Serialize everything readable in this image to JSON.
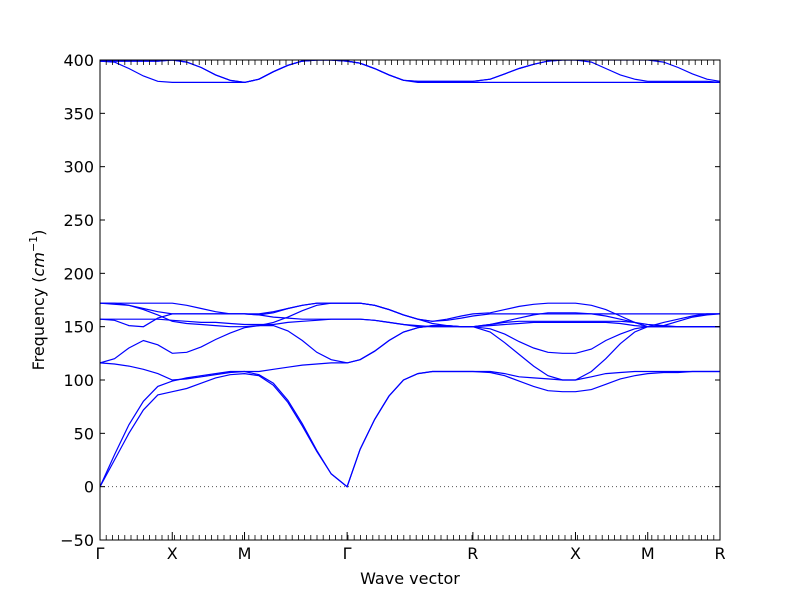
{
  "chart_data": {
    "type": "line",
    "title": "",
    "xlabel": "Wave vector",
    "ylabel": "Frequency",
    "ylabel_unit": "cm",
    "ylabel_unit_exp": "−1",
    "ylim": [
      -50,
      400
    ],
    "yticks": [
      -50,
      0,
      50,
      100,
      150,
      200,
      250,
      300,
      350,
      400
    ],
    "grid": false,
    "legend": "none",
    "zero_line": {
      "value": 0,
      "style": "dotted"
    },
    "line_color": "#0000ff",
    "x_labels": [
      {
        "label": "Γ",
        "x": 0.0
      },
      {
        "label": "X",
        "x": 0.5
      },
      {
        "label": "M",
        "x": 1.0
      },
      {
        "label": "Γ",
        "x": 1.71
      },
      {
        "label": "R",
        "x": 2.58
      },
      {
        "label": "X",
        "x": 3.29
      },
      {
        "label": "M",
        "x": 3.79
      },
      {
        "label": "R",
        "x": 4.29
      }
    ],
    "xlim": [
      0.0,
      4.29
    ],
    "series": [
      {
        "x": [
          0.0,
          0.1,
          0.2,
          0.3,
          0.4,
          0.5,
          0.6,
          0.7,
          0.8,
          0.9,
          1.0,
          1.1,
          1.2,
          1.3,
          1.4,
          1.5,
          1.6,
          1.71,
          1.8,
          1.9,
          2.0,
          2.1,
          2.2,
          2.3,
          2.4,
          2.5,
          2.58,
          2.7,
          2.8,
          2.9,
          3.0,
          3.1,
          3.2,
          3.29,
          3.4,
          3.5,
          3.6,
          3.7,
          3.79,
          3.9,
          4.0,
          4.1,
          4.2,
          4.29
        ],
        "y": [
          0,
          25,
          50,
          72,
          86,
          89,
          92,
          97,
          102,
          105,
          106,
          104,
          95,
          79,
          57,
          33,
          12,
          0,
          35,
          63,
          85,
          100,
          106,
          108,
          108,
          108,
          108,
          107,
          104,
          99,
          94,
          90,
          89,
          89,
          91,
          96,
          101,
          104,
          106,
          107,
          107,
          108,
          108,
          108
        ]
      },
      {
        "x": [
          0.0,
          0.1,
          0.2,
          0.3,
          0.4,
          0.5,
          0.6,
          0.7,
          0.8,
          0.9,
          1.0,
          1.1,
          1.2,
          1.3,
          1.4,
          1.5,
          1.6,
          1.71,
          1.8,
          1.9,
          2.0,
          2.1,
          2.2,
          2.3,
          2.4,
          2.5,
          2.58,
          2.7,
          2.8,
          2.9,
          3.0,
          3.1,
          3.2,
          3.29,
          3.4,
          3.5,
          3.6,
          3.7,
          3.79,
          3.9,
          4.0,
          4.1,
          4.2,
          4.29
        ],
        "y": [
          0,
          30,
          58,
          80,
          94,
          99,
          102,
          104,
          106,
          108,
          108,
          105,
          97,
          81,
          59,
          34,
          12,
          0,
          35,
          63,
          85,
          100,
          106,
          108,
          108,
          108,
          108,
          108,
          106,
          103,
          102,
          101,
          100,
          100,
          103,
          106,
          107,
          108,
          108,
          108,
          108,
          108,
          108,
          108
        ]
      },
      {
        "x": [
          0.0,
          0.1,
          0.2,
          0.3,
          0.4,
          0.5,
          0.6,
          0.7,
          0.8,
          0.9,
          1.0,
          1.1,
          1.2,
          1.3,
          1.4,
          1.5,
          1.6,
          1.71,
          1.8,
          1.9,
          2.0,
          2.1,
          2.2,
          2.3,
          2.4,
          2.5,
          2.58,
          2.7,
          2.8,
          2.9,
          3.0,
          3.1,
          3.2,
          3.29,
          3.4,
          3.5,
          3.6,
          3.7,
          3.79,
          3.9,
          4.0,
          4.1,
          4.2,
          4.29
        ],
        "y": [
          116,
          115,
          113,
          110,
          106,
          100,
          101,
          103,
          105,
          107,
          108,
          108,
          110,
          112,
          114,
          115,
          116,
          116,
          119,
          127,
          137,
          145,
          149,
          151,
          151,
          150,
          150,
          145,
          135,
          124,
          113,
          104,
          100,
          100,
          108,
          120,
          134,
          145,
          150,
          154,
          157,
          160,
          162,
          162
        ]
      },
      {
        "x": [
          0.0,
          0.1,
          0.2,
          0.3,
          0.4,
          0.5,
          0.6,
          0.7,
          0.8,
          0.9,
          1.0,
          1.1,
          1.2,
          1.3,
          1.4,
          1.5,
          1.6,
          1.71,
          1.8,
          1.9,
          2.0,
          2.1,
          2.2,
          2.3,
          2.4,
          2.5,
          2.58,
          2.7,
          2.8,
          2.9,
          3.0,
          3.1,
          3.2,
          3.29,
          3.4,
          3.5,
          3.6,
          3.7,
          3.79,
          3.9,
          4.0,
          4.1,
          4.2,
          4.29
        ],
        "y": [
          116,
          120,
          130,
          137,
          133,
          125,
          126,
          131,
          138,
          144,
          149,
          151,
          151,
          146,
          137,
          126,
          119,
          116,
          119,
          127,
          137,
          145,
          149,
          151,
          151,
          150,
          150,
          148,
          143,
          136,
          130,
          126,
          125,
          125,
          129,
          137,
          143,
          148,
          150,
          150,
          150,
          150,
          150,
          150
        ]
      },
      {
        "x": [
          0.0,
          0.1,
          0.2,
          0.3,
          0.4,
          0.5,
          0.6,
          0.7,
          0.8,
          0.9,
          1.0,
          1.1,
          1.2,
          1.3,
          1.4,
          1.5,
          1.6,
          1.71,
          1.8,
          1.9,
          2.0,
          2.1,
          2.2,
          2.3,
          2.4,
          2.5,
          2.58,
          2.7,
          2.8,
          2.9,
          3.0,
          3.1,
          3.2,
          3.29,
          3.4,
          3.5,
          3.6,
          3.7,
          3.79,
          3.9,
          4.0,
          4.1,
          4.2,
          4.29
        ],
        "y": [
          157,
          156,
          151,
          150,
          158,
          162,
          162,
          162,
          162,
          162,
          162,
          161,
          159,
          158,
          157,
          157,
          157,
          157,
          157,
          156,
          154,
          152,
          150,
          150,
          150,
          150,
          150,
          151,
          152,
          153,
          154,
          154,
          154,
          154,
          154,
          154,
          153,
          151,
          150,
          150,
          150,
          150,
          150,
          150
        ]
      },
      {
        "x": [
          0.0,
          0.1,
          0.2,
          0.3,
          0.4,
          0.5,
          0.6,
          0.7,
          0.8,
          0.9,
          1.0,
          1.1,
          1.2,
          1.3,
          1.4,
          1.5,
          1.6,
          1.71,
          1.8,
          1.9,
          2.0,
          2.1,
          2.2,
          2.3,
          2.4,
          2.5,
          2.58,
          2.7,
          2.8,
          2.9,
          3.0,
          3.1,
          3.2,
          3.29,
          3.4,
          3.5,
          3.6,
          3.7,
          3.79,
          3.9,
          4.0,
          4.1,
          4.2,
          4.29
        ],
        "y": [
          157,
          157,
          157,
          157,
          157,
          156,
          155,
          154,
          154,
          153,
          152,
          152,
          152,
          154,
          155,
          156,
          157,
          157,
          157,
          156,
          154,
          152,
          151,
          150,
          150,
          150,
          150,
          152,
          154,
          155,
          155,
          155,
          155,
          155,
          155,
          155,
          155,
          154,
          152,
          151,
          150,
          150,
          150,
          150
        ]
      },
      {
        "x": [
          0.0,
          0.1,
          0.2,
          0.3,
          0.4,
          0.5,
          0.6,
          0.7,
          0.8,
          0.9,
          1.0,
          1.1,
          1.2,
          1.3,
          1.4,
          1.5,
          1.6,
          1.71,
          1.8,
          1.9,
          2.0,
          2.1,
          2.2,
          2.3,
          2.4,
          2.5,
          2.58,
          2.7,
          2.8,
          2.9,
          3.0,
          3.1,
          3.2,
          3.29,
          3.4,
          3.5,
          3.6,
          3.7,
          3.79,
          3.9,
          4.0,
          4.1,
          4.2,
          4.29
        ],
        "y": [
          172,
          171,
          170,
          166,
          161,
          155,
          153,
          152,
          151,
          150,
          150,
          151,
          154,
          159,
          165,
          170,
          172,
          172,
          172,
          170,
          166,
          161,
          157,
          153,
          151,
          150,
          150,
          152,
          155,
          158,
          161,
          163,
          163,
          163,
          162,
          160,
          157,
          154,
          150,
          151,
          155,
          159,
          161,
          162
        ]
      },
      {
        "x": [
          0.0,
          0.1,
          0.2,
          0.3,
          0.4,
          0.5,
          0.6,
          0.7,
          0.8,
          0.9,
          1.0,
          1.1,
          1.2,
          1.3,
          1.4,
          1.5,
          1.6,
          1.71,
          1.8,
          1.9,
          2.0,
          2.1,
          2.2,
          2.3,
          2.4,
          2.5,
          2.58,
          2.7,
          2.8,
          2.9,
          3.0,
          3.1,
          3.2,
          3.29,
          3.4,
          3.5,
          3.6,
          3.7,
          3.79,
          3.9,
          4.0,
          4.1,
          4.2,
          4.29
        ],
        "y": [
          172,
          172,
          172,
          172,
          172,
          172,
          170,
          167,
          164,
          162,
          162,
          161,
          163,
          167,
          170,
          172,
          172,
          172,
          172,
          170,
          166,
          161,
          157,
          155,
          156,
          158,
          160,
          162,
          162,
          162,
          162,
          162,
          162,
          162,
          162,
          162,
          162,
          162,
          162,
          162,
          162,
          162,
          162,
          162
        ]
      },
      {
        "x": [
          0.0,
          0.1,
          0.2,
          0.3,
          0.4,
          0.5,
          0.6,
          0.7,
          0.8,
          0.9,
          1.0,
          1.1,
          1.2,
          1.3,
          1.4,
          1.5,
          1.6,
          1.71,
          1.8,
          1.9,
          2.0,
          2.1,
          2.2,
          2.3,
          2.4,
          2.5,
          2.58,
          2.7,
          2.8,
          2.9,
          3.0,
          3.1,
          3.2,
          3.29,
          3.4,
          3.5,
          3.6,
          3.7,
          3.79,
          3.9,
          4.0,
          4.1,
          4.2,
          4.29
        ],
        "y": [
          172,
          172,
          170,
          167,
          164,
          162,
          162,
          162,
          162,
          162,
          162,
          162,
          164,
          167,
          170,
          172,
          172,
          172,
          172,
          170,
          166,
          161,
          157,
          155,
          157,
          160,
          162,
          163,
          166,
          169,
          171,
          172,
          172,
          172,
          170,
          166,
          160,
          154,
          150,
          150,
          150,
          150,
          150,
          150
        ]
      },
      {
        "x": [
          0.0,
          0.1,
          0.2,
          0.3,
          0.4,
          0.5,
          0.6,
          0.7,
          0.8,
          0.9,
          1.0,
          1.1,
          1.2,
          1.3,
          1.4,
          1.5,
          1.6,
          1.71,
          1.8,
          1.9,
          2.0,
          2.1,
          2.2,
          2.3,
          2.4,
          2.5,
          2.58,
          2.7,
          2.8,
          2.9,
          3.0,
          3.1,
          3.2,
          3.29,
          3.4,
          3.5,
          3.6,
          3.7,
          3.79,
          3.9,
          4.0,
          4.1,
          4.2,
          4.29
        ],
        "y": [
          399,
          398,
          392,
          385,
          380,
          379,
          379,
          379,
          379,
          379,
          379,
          382,
          389,
          395,
          399,
          400,
          400,
          399,
          397,
          392,
          386,
          381,
          379,
          379,
          379,
          379,
          379,
          379,
          379,
          379,
          379,
          379,
          379,
          379,
          379,
          379,
          379,
          379,
          379,
          379,
          379,
          379,
          379,
          379
        ]
      },
      {
        "x": [
          0.0,
          0.1,
          0.2,
          0.3,
          0.4,
          0.5,
          0.6,
          0.7,
          0.8,
          0.9,
          1.0,
          1.1,
          1.2,
          1.3,
          1.4,
          1.5,
          1.6,
          1.71,
          1.8,
          1.9,
          2.0,
          2.1,
          2.2,
          2.3,
          2.4,
          2.5,
          2.58,
          2.7,
          2.8,
          2.9,
          3.0,
          3.1,
          3.2,
          3.29,
          3.4,
          3.5,
          3.6,
          3.7,
          3.79,
          3.9,
          4.0,
          4.1,
          4.2,
          4.29
        ],
        "y": [
          399,
          399,
          399,
          399,
          399,
          400,
          398,
          393,
          386,
          381,
          379,
          382,
          389,
          395,
          399,
          400,
          400,
          399,
          397,
          392,
          386,
          381,
          380,
          380,
          380,
          380,
          380,
          382,
          387,
          392,
          396,
          399,
          400,
          400,
          398,
          392,
          386,
          382,
          380,
          380,
          380,
          380,
          380,
          379
        ]
      },
      {
        "x": [
          0.0,
          0.1,
          0.2,
          0.3,
          0.4,
          0.5,
          0.6,
          0.7,
          0.8,
          0.9,
          1.0,
          1.1,
          1.2,
          1.3,
          1.4,
          1.5,
          1.6,
          1.71,
          1.8,
          1.9,
          2.0,
          2.1,
          2.2,
          2.3,
          2.4,
          2.5,
          2.58,
          2.7,
          2.8,
          2.9,
          3.0,
          3.1,
          3.2,
          3.29,
          3.4,
          3.5,
          3.6,
          3.7,
          3.79,
          3.9,
          4.0,
          4.1,
          4.2,
          4.29
        ],
        "y": [
          399,
          399,
          399,
          399,
          399,
          400,
          398,
          393,
          386,
          381,
          379,
          382,
          389,
          395,
          399,
          400,
          400,
          399,
          397,
          392,
          386,
          381,
          380,
          380,
          380,
          380,
          380,
          382,
          387,
          392,
          396,
          399,
          400,
          400,
          400,
          400,
          400,
          400,
          400,
          398,
          393,
          387,
          382,
          380
        ]
      }
    ]
  }
}
